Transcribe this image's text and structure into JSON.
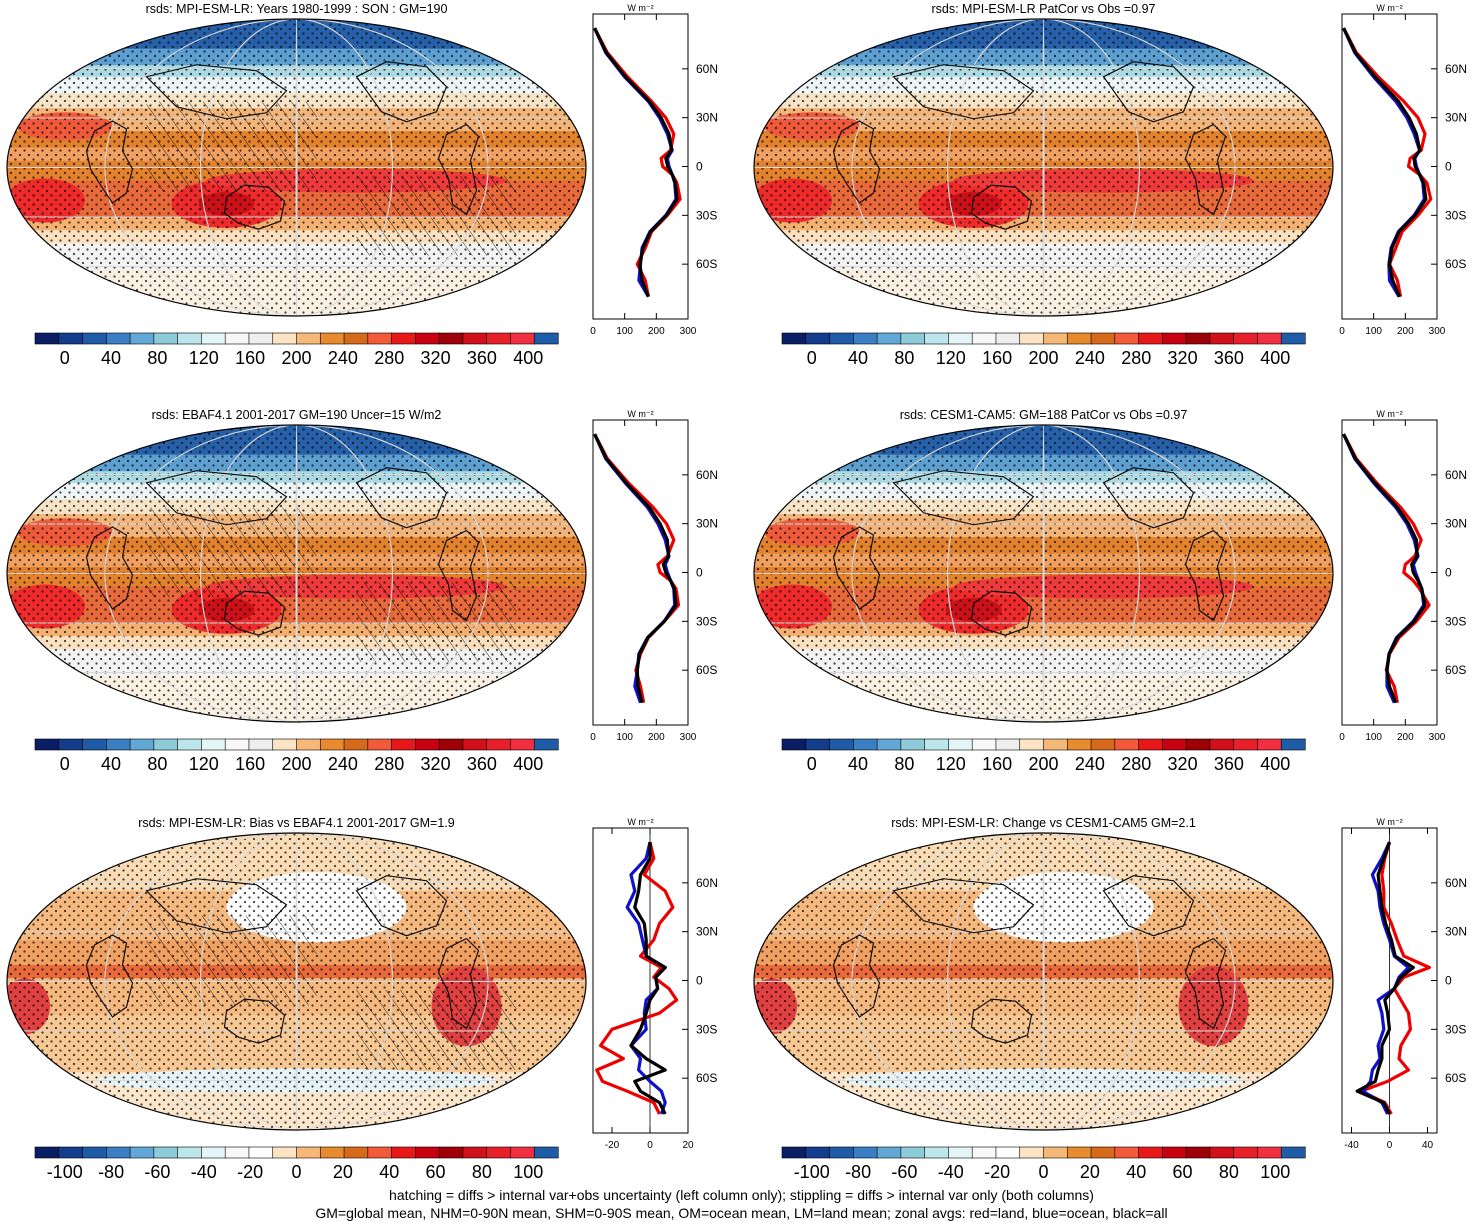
{
  "chart_data": [
    {
      "type": "heatmap",
      "title": "rsds: MPI-ESM-LR: Years 1980-1999 : SON : GM=190",
      "colorbar_ticks": [
        "0",
        "40",
        "80",
        "120",
        "160",
        "200",
        "240",
        "280",
        "320",
        "360",
        "400"
      ],
      "colorbar_range": [
        0,
        400
      ],
      "zonal": {
        "type": "line",
        "units": "W m-2",
        "xticks": [
          "0",
          "100",
          "200",
          "300"
        ],
        "xlim": [
          0,
          300
        ],
        "lat_labels": [
          "60N",
          "30N",
          "0",
          "30S",
          "60S"
        ],
        "lat": [
          85,
          70,
          55,
          40,
          30,
          20,
          10,
          5,
          0,
          -5,
          -10,
          -20,
          -30,
          -40,
          -50,
          -60,
          -70,
          -80
        ],
        "series": [
          {
            "name": "land",
            "color": "#ee0000",
            "values": [
              5,
              45,
              110,
              185,
              230,
              255,
              245,
              215,
              220,
              250,
              265,
              275,
              235,
              185,
              165,
              140,
              165,
              175
            ]
          },
          {
            "name": "ocean",
            "color": "#1010cc",
            "values": [
              5,
              40,
              100,
              175,
              210,
              235,
              250,
              235,
              240,
              250,
              258,
              262,
              230,
              180,
              155,
              150,
              145,
              175
            ]
          },
          {
            "name": "all",
            "color": "#000000",
            "values": [
              5,
              42,
              103,
              178,
              215,
              240,
              248,
              230,
              236,
              250,
              260,
              265,
              232,
              182,
              158,
              148,
              155,
              175
            ]
          }
        ]
      }
    },
    {
      "type": "heatmap",
      "title": "rsds: MPI-ESM-LR PatCor vs Obs =0.97",
      "colorbar_ticks": [
        "0",
        "40",
        "80",
        "120",
        "160",
        "200",
        "240",
        "280",
        "320",
        "360",
        "400"
      ],
      "colorbar_range": [
        0,
        400
      ],
      "zonal": {
        "type": "line",
        "units": "W m-2",
        "xticks": [
          "0",
          "100",
          "200",
          "300"
        ],
        "xlim": [
          0,
          300
        ],
        "lat_labels": [
          "60N",
          "30N",
          "0",
          "30S",
          "60S"
        ],
        "lat": [
          85,
          70,
          55,
          40,
          30,
          20,
          10,
          5,
          0,
          -5,
          -10,
          -20,
          -30,
          -40,
          -50,
          -60,
          -70,
          -80
        ],
        "series": [
          {
            "name": "land",
            "color": "#ee0000",
            "values": [
              5,
              45,
              115,
              195,
              240,
              262,
              250,
              215,
              210,
              245,
              268,
              280,
              240,
              190,
              170,
              150,
              175,
              185
            ]
          },
          {
            "name": "ocean",
            "color": "#1010cc",
            "values": [
              5,
              40,
              100,
              170,
              205,
              228,
              245,
              230,
              235,
              245,
              255,
              260,
              228,
              178,
              155,
              148,
              150,
              180
            ]
          },
          {
            "name": "all",
            "color": "#000000",
            "values": [
              5,
              42,
              105,
              178,
              212,
              235,
              246,
              227,
              231,
              245,
              258,
              265,
              231,
              180,
              158,
              150,
              160,
              182
            ]
          }
        ]
      }
    },
    {
      "type": "heatmap",
      "title": "rsds: EBAF4.1 2001-2017 GM=190 Uncer=15 W/m2",
      "colorbar_ticks": [
        "0",
        "40",
        "80",
        "120",
        "160",
        "200",
        "240",
        "280",
        "320",
        "360",
        "400"
      ],
      "colorbar_range": [
        0,
        400
      ],
      "zonal": {
        "type": "line",
        "units": "W m-2",
        "xticks": [
          "0",
          "100",
          "200",
          "300"
        ],
        "xlim": [
          0,
          300
        ],
        "lat_labels": [
          "60N",
          "30N",
          "0",
          "30S",
          "60S"
        ],
        "lat": [
          85,
          70,
          55,
          40,
          30,
          20,
          10,
          5,
          0,
          -5,
          -10,
          -20,
          -30,
          -40,
          -50,
          -60,
          -70,
          -80
        ],
        "series": [
          {
            "name": "land",
            "color": "#ee0000",
            "values": [
              5,
              45,
              112,
              190,
              232,
              255,
              235,
              205,
              212,
              245,
              262,
              270,
              225,
              175,
              150,
              135,
              150,
              160
            ]
          },
          {
            "name": "ocean",
            "color": "#1010cc",
            "values": [
              5,
              40,
              102,
              172,
              205,
              228,
              240,
              228,
              235,
              245,
              255,
              258,
              225,
              172,
              145,
              140,
              132,
              150
            ]
          },
          {
            "name": "all",
            "color": "#000000",
            "values": [
              5,
              42,
              105,
              178,
              212,
              235,
              238,
              222,
              230,
              245,
              257,
              262,
              225,
              173,
              147,
              140,
              142,
              155
            ]
          }
        ]
      }
    },
    {
      "type": "heatmap",
      "title": "rsds: CESM1-CAM5: GM=188 PatCor vs Obs =0.97",
      "colorbar_ticks": [
        "0",
        "40",
        "80",
        "120",
        "160",
        "200",
        "240",
        "280",
        "320",
        "360",
        "400"
      ],
      "colorbar_range": [
        0,
        400
      ],
      "zonal": {
        "type": "line",
        "units": "W m-2",
        "xticks": [
          "0",
          "100",
          "200",
          "300"
        ],
        "xlim": [
          0,
          300
        ],
        "lat_labels": [
          "60N",
          "30N",
          "0",
          "30S",
          "60S"
        ],
        "lat": [
          85,
          70,
          55,
          40,
          30,
          20,
          10,
          5,
          0,
          -5,
          -10,
          -20,
          -30,
          -40,
          -50,
          -60,
          -70,
          -80
        ],
        "series": [
          {
            "name": "land",
            "color": "#ee0000",
            "values": [
              5,
              45,
              110,
              185,
              225,
              250,
              230,
              200,
              195,
              225,
              245,
              275,
              235,
              180,
              150,
              140,
              165,
              175
            ]
          },
          {
            "name": "ocean",
            "color": "#1010cc",
            "values": [
              5,
              40,
              100,
              170,
              205,
              228,
              240,
              225,
              232,
              242,
              252,
              258,
              225,
              172,
              148,
              142,
              142,
              165
            ]
          },
          {
            "name": "all",
            "color": "#000000",
            "values": [
              5,
              42,
              104,
              175,
              210,
              235,
              237,
              220,
              225,
              240,
              252,
              262,
              228,
              175,
              149,
              142,
              150,
              170
            ]
          }
        ]
      }
    },
    {
      "type": "heatmap",
      "title": "rsds: MPI-ESM-LR: Bias vs EBAF4.1 2001-2017  GM=1.9",
      "colorbar_ticks": [
        "-100",
        "-80",
        "-60",
        "-40",
        "-20",
        "0",
        "20",
        "40",
        "60",
        "80",
        "100"
      ],
      "colorbar_range": [
        -100,
        100
      ],
      "zonal": {
        "type": "line",
        "units": "W m-2",
        "xticks": [
          "-20",
          "0",
          "20"
        ],
        "xlim": [
          -30,
          20
        ],
        "lat_labels": [
          "60N",
          "30N",
          "0",
          "30S",
          "60S"
        ],
        "lat": [
          85,
          75,
          65,
          55,
          45,
          35,
          25,
          15,
          8,
          2,
          -5,
          -12,
          -20,
          -30,
          -40,
          -48,
          -55,
          -62,
          -68,
          -75,
          -82
        ],
        "series": [
          {
            "name": "land",
            "color": "#ee0000",
            "values": [
              0,
              2,
              -3,
              8,
              12,
              5,
              2,
              -5,
              6,
              2,
              10,
              14,
              5,
              -20,
              -26,
              -14,
              -28,
              -25,
              -12,
              2,
              5
            ]
          },
          {
            "name": "ocean",
            "color": "#1010cc",
            "values": [
              0,
              -2,
              -10,
              -8,
              -12,
              -6,
              -4,
              -2,
              8,
              3,
              4,
              -2,
              -3,
              -2,
              -10,
              -5,
              -6,
              0,
              6,
              8,
              6
            ]
          },
          {
            "name": "all",
            "color": "#000000",
            "values": [
              0,
              0,
              -5,
              -6,
              -8,
              -3,
              -2,
              -2,
              8,
              3,
              4,
              0,
              -2,
              -5,
              -10,
              -2,
              8,
              -8,
              -5,
              5,
              8
            ]
          }
        ]
      }
    },
    {
      "type": "heatmap",
      "title": "rsds: MPI-ESM-LR: Change vs CESM1-CAM5 GM=2.1",
      "colorbar_ticks": [
        "-100",
        "-80",
        "-60",
        "-40",
        "-20",
        "0",
        "20",
        "40",
        "60",
        "80",
        "100"
      ],
      "colorbar_range": [
        -100,
        100
      ],
      "zonal": {
        "type": "line",
        "units": "W m-2",
        "xticks": [
          "-40",
          "0",
          "40"
        ],
        "xlim": [
          -50,
          50
        ],
        "lat_labels": [
          "60N",
          "30N",
          "0",
          "30S",
          "60S"
        ],
        "lat": [
          85,
          75,
          65,
          55,
          45,
          35,
          25,
          15,
          8,
          2,
          -5,
          -12,
          -20,
          -30,
          -40,
          -48,
          -55,
          -62,
          -68,
          -75,
          -82
        ],
        "series": [
          {
            "name": "land",
            "color": "#ee0000",
            "values": [
              0,
              -5,
              -8,
              -6,
              -6,
              2,
              8,
              15,
              42,
              15,
              5,
              12,
              20,
              22,
              12,
              10,
              20,
              -2,
              -30,
              -5,
              2
            ]
          },
          {
            "name": "ocean",
            "color": "#1010cc",
            "values": [
              0,
              -8,
              -18,
              -12,
              -10,
              -6,
              0,
              5,
              20,
              10,
              5,
              -12,
              -8,
              -6,
              -12,
              -10,
              -18,
              -20,
              -28,
              -8,
              -2
            ]
          },
          {
            "name": "all",
            "color": "#000000",
            "values": [
              0,
              -6,
              -12,
              -10,
              -8,
              -4,
              2,
              6,
              25,
              12,
              5,
              -5,
              -2,
              0,
              -8,
              -8,
              -12,
              -15,
              -34,
              -6,
              0
            ]
          }
        ]
      }
    }
  ],
  "footer": {
    "line1": "hatching = diffs > internal var+obs uncertainty (left column only); stippling = diffs > internal var only (both columns)",
    "line2": "GM=global mean, NHM=0-90N mean, SHM=0-90S mean, OM=ocean mean, LM=land mean; zonal avgs: red=land, blue=ocean, black=all"
  },
  "colors": {
    "abs_scale": [
      "#0a1e66",
      "#143c8c",
      "#1f5ca8",
      "#3a7fc4",
      "#62a8d6",
      "#8ecbd8",
      "#bde6ec",
      "#e4f5f7",
      "#f7f7f7",
      "#eeeeee",
      "#fbe3c3",
      "#f5b877",
      "#e88a2e",
      "#d66a1a",
      "#f25a3a",
      "#e81818",
      "#c80010",
      "#9e0008",
      "#d0101a",
      "#e8202a",
      "#f03040",
      "#1f5ca8"
    ],
    "diff_scale": [
      "#0a1e66",
      "#143c8c",
      "#1f5ca8",
      "#3a7fc4",
      "#62a8d6",
      "#8ecbd8",
      "#bde6ec",
      "#e4f5f7",
      "#f7f7f7",
      "#ffffff",
      "#fbe3c3",
      "#f5b877",
      "#e88a2e",
      "#d66a1a",
      "#f25a3a",
      "#e81818",
      "#c80010",
      "#9e0008",
      "#d0101a",
      "#e8202a",
      "#f03040",
      "#1f5ca8"
    ],
    "land": "#ee0000",
    "ocean": "#1010cc",
    "all": "#000000"
  }
}
